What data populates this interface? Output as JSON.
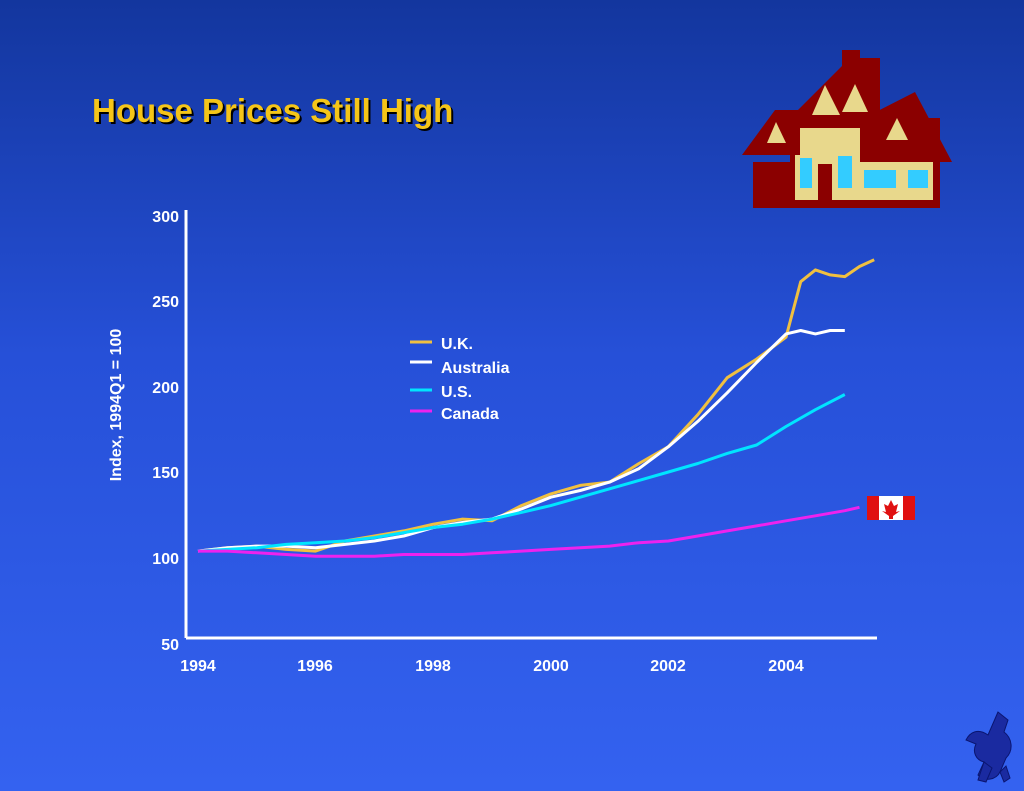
{
  "slide": {
    "title": "House Prices Still High"
  },
  "icons": {
    "house": "house-icon",
    "flag": "canada-flag-icon",
    "logo": "unicorn-logo-icon"
  },
  "colors": {
    "title": "#f5c518",
    "uk": "#f0c040",
    "australia": "#ffffff",
    "us": "#00e5ff",
    "canada": "#ee22ee"
  },
  "chart_data": {
    "type": "line",
    "title": "House Prices Still High",
    "ylabel": "Index, 1994Q1 = 100",
    "xlabel": "",
    "xlim": [
      1994,
      2005.75
    ],
    "ylim": [
      50,
      300
    ],
    "x_ticks": [
      "1994",
      "1996",
      "1998",
      "2000",
      "2002",
      "2004"
    ],
    "y_ticks": [
      "300",
      "250",
      "200",
      "150",
      "100",
      "50"
    ],
    "legend_position": "center",
    "grid": false,
    "series": [
      {
        "name": "U.K.",
        "color": "#f0c040",
        "x": [
          1994,
          1994.5,
          1995,
          1995.5,
          1996,
          1996.5,
          1997,
          1997.5,
          1998,
          1998.5,
          1999,
          1999.5,
          2000,
          2000.5,
          2001,
          2001.5,
          2002,
          2002.5,
          2003,
          2003.5,
          2004,
          2004.25,
          2004.5,
          2004.75,
          2005,
          2005.25,
          2005.5
        ],
        "y": [
          101,
          103,
          104,
          102,
          101,
          107,
          110,
          113,
          117,
          120,
          119,
          128,
          135,
          140,
          142,
          153,
          163,
          182,
          204,
          215,
          228,
          261,
          268,
          265,
          264,
          270,
          274
        ]
      },
      {
        "name": "Australia",
        "color": "#ffffff",
        "x": [
          1994,
          1994.5,
          1995,
          1995.5,
          1996,
          1996.5,
          1997,
          1997.5,
          1998,
          1998.5,
          1999,
          1999.5,
          2000,
          2000.5,
          2001,
          2001.5,
          2002,
          2002.5,
          2003,
          2003.5,
          2004,
          2004.25,
          2004.5,
          2004.75,
          2005
        ],
        "y": [
          101,
          103,
          104,
          104,
          103,
          105,
          107,
          110,
          115,
          118,
          120,
          126,
          133,
          137,
          142,
          150,
          163,
          178,
          195,
          213,
          230,
          232,
          230,
          232,
          232
        ]
      },
      {
        "name": "U.S.",
        "color": "#00e5ff",
        "x": [
          1994,
          1994.5,
          1995,
          1995.5,
          1996,
          1996.5,
          1997,
          1997.5,
          1998,
          1998.5,
          1999,
          1999.5,
          2000,
          2000.5,
          2001,
          2001.5,
          2002,
          2002.5,
          2003,
          2003.5,
          2004,
          2004.5,
          2005
        ],
        "y": [
          101,
          102,
          103,
          105,
          106,
          107,
          109,
          112,
          115,
          117,
          120,
          124,
          128,
          133,
          138,
          143,
          148,
          153,
          159,
          164,
          175,
          185,
          194
        ]
      },
      {
        "name": "Canada",
        "color": "#ee22ee",
        "x": [
          1994,
          1994.5,
          1995,
          1995.5,
          1996,
          1996.5,
          1997,
          1997.5,
          1998,
          1998.5,
          1999,
          1999.5,
          2000,
          2000.5,
          2001,
          2001.5,
          2002,
          2002.5,
          2003,
          2003.5,
          2004,
          2004.5,
          2005,
          2005.25
        ],
        "y": [
          101,
          101,
          100,
          99,
          98,
          98,
          98,
          99,
          99,
          99,
          100,
          101,
          102,
          103,
          104,
          106,
          107,
          110,
          113,
          116,
          119,
          122,
          125,
          127
        ]
      }
    ]
  }
}
